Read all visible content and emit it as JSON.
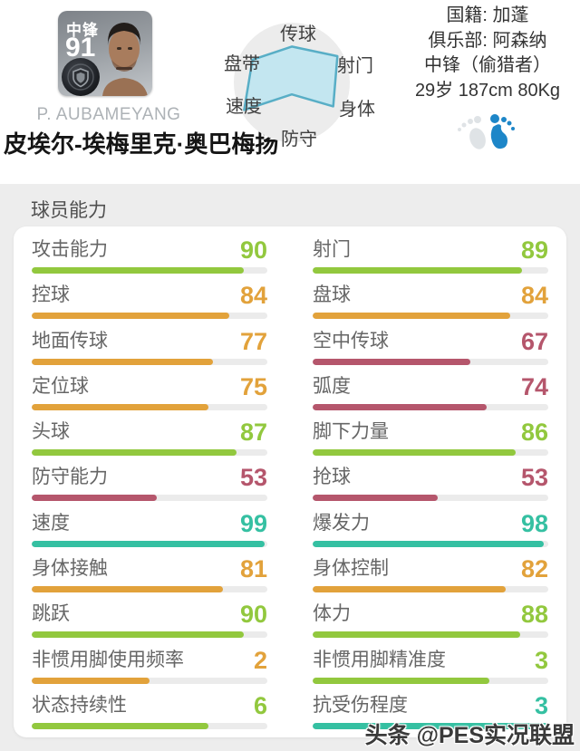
{
  "player": {
    "position_badge": "中锋",
    "rating": "91",
    "name_latin": "P. AUBAMEYANG",
    "name_zh": "皮埃尔-埃梅里克·奥巴梅扬",
    "nationality_line": "国籍: 加蓬",
    "club_line": "俱乐部: 阿森纳",
    "role_line": "中锋（偷猎者）",
    "bio_line": "29岁 187cm 80Kg"
  },
  "radar": {
    "labels": [
      "传球",
      "射门",
      "身体",
      "防守",
      "速度",
      "盘带"
    ],
    "values_norm": [
      0.6,
      0.88,
      0.8,
      0.2,
      0.92,
      0.76
    ],
    "fill": "#bfe5f0",
    "stroke": "#58aec6",
    "background_circle": "#ececec"
  },
  "chart_data": {
    "type": "radar",
    "categories": [
      "传球",
      "射门",
      "身体",
      "防守",
      "速度",
      "盘带"
    ],
    "values": [
      0.6,
      0.88,
      0.8,
      0.2,
      0.92,
      0.76
    ],
    "title": "",
    "note": "six-axis ability radar, normalized 0-1"
  },
  "abilities": {
    "section_title": "球员能力",
    "columns": {
      "left": [
        {
          "label": "攻击能力",
          "value": "90",
          "tier": "green",
          "pct": 90
        },
        {
          "label": "控球",
          "value": "84",
          "tier": "orange",
          "pct": 84
        },
        {
          "label": "地面传球",
          "value": "77",
          "tier": "orange",
          "pct": 77
        },
        {
          "label": "定位球",
          "value": "75",
          "tier": "orange",
          "pct": 75
        },
        {
          "label": "头球",
          "value": "87",
          "tier": "green",
          "pct": 87
        },
        {
          "label": "防守能力",
          "value": "53",
          "tier": "pink",
          "pct": 53
        },
        {
          "label": "速度",
          "value": "99",
          "tier": "teal",
          "pct": 99
        },
        {
          "label": "身体接触",
          "value": "81",
          "tier": "orange",
          "pct": 81
        },
        {
          "label": "跳跃",
          "value": "90",
          "tier": "green",
          "pct": 90
        },
        {
          "label": "非惯用脚使用频率",
          "value": "2",
          "tier": "orange",
          "pct": 50
        },
        {
          "label": "状态持续性",
          "value": "6",
          "tier": "green",
          "pct": 75
        }
      ],
      "right": [
        {
          "label": "射门",
          "value": "89",
          "tier": "green",
          "pct": 89
        },
        {
          "label": "盘球",
          "value": "84",
          "tier": "orange",
          "pct": 84
        },
        {
          "label": "空中传球",
          "value": "67",
          "tier": "pink",
          "pct": 67
        },
        {
          "label": "弧度",
          "value": "74",
          "tier": "pink",
          "pct": 74
        },
        {
          "label": "脚下力量",
          "value": "86",
          "tier": "green",
          "pct": 86
        },
        {
          "label": "抢球",
          "value": "53",
          "tier": "pink",
          "pct": 53
        },
        {
          "label": "爆发力",
          "value": "98",
          "tier": "teal",
          "pct": 98
        },
        {
          "label": "身体控制",
          "value": "82",
          "tier": "orange",
          "pct": 82
        },
        {
          "label": "体力",
          "value": "88",
          "tier": "green",
          "pct": 88
        },
        {
          "label": "非惯用脚精准度",
          "value": "3",
          "tier": "green",
          "pct": 75
        },
        {
          "label": "抗受伤程度",
          "value": "3",
          "tier": "teal",
          "pct": 100
        }
      ]
    }
  },
  "colors": {
    "teal": "#35c0a2",
    "green": "#92c83e",
    "orange": "#e2a23b",
    "pink": "#b5566c",
    "foot_active": "#1d86c8",
    "foot_inactive": "#dfe3e6"
  },
  "watermark": "头条 @PES实况联盟"
}
